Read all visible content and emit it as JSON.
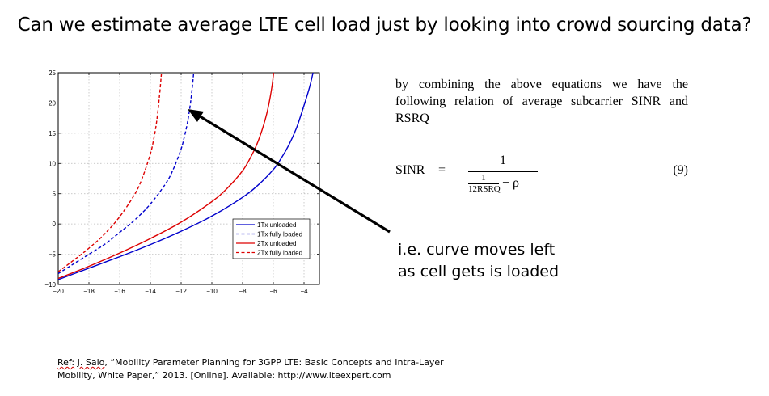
{
  "slide": {
    "title": "Can we estimate average LTE cell load just by looking into crowd sourcing data?",
    "paper_text": "by combining the above equations we have the following relation of average subcarrier SINR and RSRQ",
    "equation": {
      "lhs": "SINR",
      "equals": "=",
      "numerator": "1",
      "small_numerator": "1",
      "small_denominator": "12RSRQ",
      "minus_rho": "− ρ",
      "number": "(9)"
    },
    "annotation": [
      "i.e. curve moves left",
      "as cell gets is loaded"
    ],
    "reference": {
      "prefix": "Ref:",
      "author": "J. Salo",
      "rest": ", “Mobility Parameter Planning for 3GPP LTE: Basic Concepts and Intra-Layer Mobility, White Paper,” 2013. [Online]. Available: http://www.lteexpert.com"
    },
    "arrow_color": "#000000"
  },
  "chart_data": {
    "type": "line",
    "title": "",
    "xlabel": "",
    "ylabel": "",
    "xlim": [
      -20,
      -3
    ],
    "ylim": [
      -10,
      25
    ],
    "x_ticks": [
      -20,
      -18,
      -16,
      -14,
      -12,
      -10,
      -8,
      -6,
      -4
    ],
    "y_ticks": [
      -10,
      -5,
      0,
      5,
      10,
      15,
      20,
      25
    ],
    "grid": true,
    "legend_position": "bottom-right",
    "series": [
      {
        "name": "1Tx unloaded",
        "color": "#0000cc",
        "dash": "solid",
        "x": [
          -20,
          -18,
          -16,
          -14,
          -12,
          -10,
          -8,
          -7,
          -6,
          -5.5,
          -5,
          -4.5,
          -4,
          -3.6,
          -3.3,
          -3.1
        ],
        "y": [
          -9.2,
          -7.3,
          -5.4,
          -3.4,
          -1.2,
          1.3,
          4.4,
          6.4,
          9.0,
          10.8,
          13.0,
          15.8,
          19.6,
          23.0,
          26.5,
          30.0
        ]
      },
      {
        "name": "1Tx fully loaded",
        "color": "#0000cc",
        "dash": "dashed",
        "x": [
          -20,
          -19,
          -18,
          -17,
          -16,
          -15,
          -14,
          -13,
          -12.5,
          -12,
          -11.8,
          -11.6,
          -11.4,
          -11.2,
          -11.1
        ],
        "y": [
          -8.2,
          -6.6,
          -5.0,
          -3.4,
          -1.4,
          0.7,
          3.3,
          6.7,
          9.1,
          12.4,
          14.3,
          16.6,
          19.8,
          24.5,
          28.0
        ]
      },
      {
        "name": "2Tx unloaded",
        "color": "#dd0000",
        "dash": "solid",
        "x": [
          -20,
          -18,
          -16,
          -14,
          -12,
          -10,
          -9,
          -8,
          -7.5,
          -7,
          -6.5,
          -6.2,
          -6.0,
          -5.9
        ],
        "y": [
          -9.0,
          -7.0,
          -4.8,
          -2.4,
          0.3,
          3.7,
          5.9,
          8.8,
          10.9,
          13.6,
          17.5,
          21.0,
          24.5,
          28.0
        ]
      },
      {
        "name": "2Tx fully loaded",
        "color": "#dd0000",
        "dash": "dashed",
        "x": [
          -20,
          -19,
          -18,
          -17,
          -16,
          -15,
          -14.5,
          -14,
          -13.8,
          -13.6,
          -13.4,
          -13.25
        ],
        "y": [
          -7.9,
          -6.0,
          -4.0,
          -1.7,
          1.2,
          5.0,
          7.8,
          11.6,
          13.8,
          16.8,
          21.4,
          26.0
        ]
      }
    ]
  }
}
